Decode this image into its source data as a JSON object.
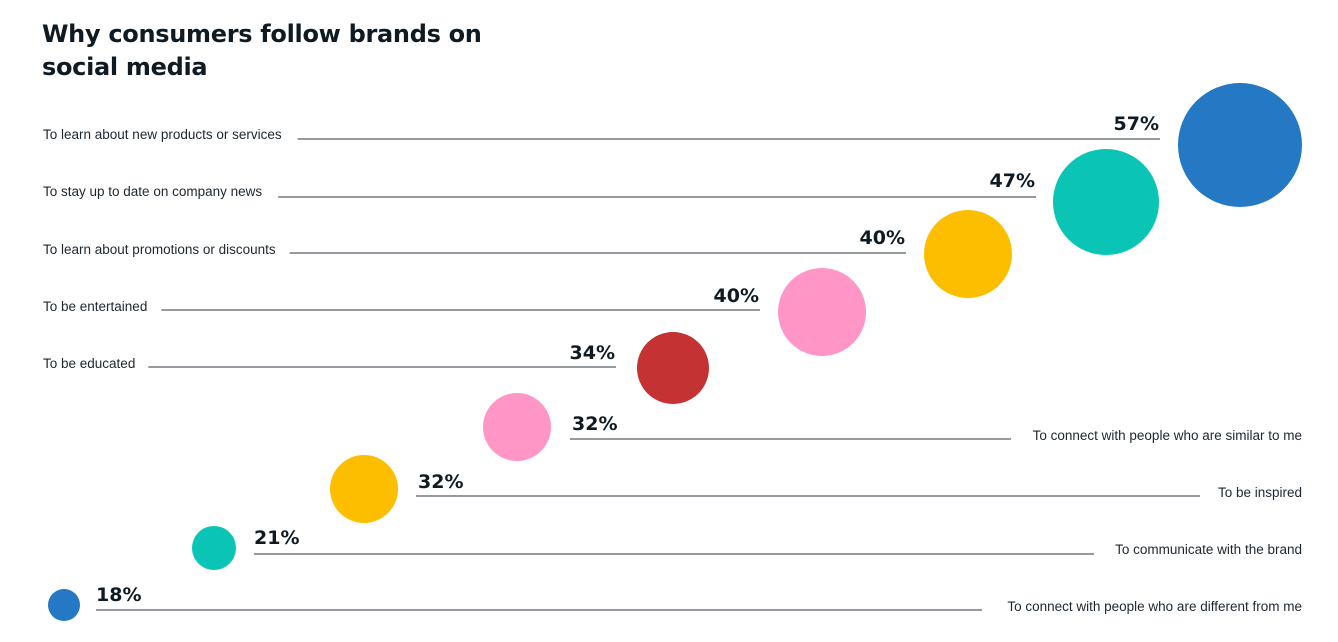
{
  "title": "Why consumers follow brands on social media",
  "chart_data": {
    "type": "bubble",
    "title": "Why consumers follow brands on social media",
    "value_unit": "%",
    "series": [
      {
        "label": "To learn about new products or services",
        "value": 57,
        "value_label": "57%",
        "color": "#2478c4"
      },
      {
        "label": "To stay up to date on company news",
        "value": 47,
        "value_label": "47%",
        "color": "#0ac5b5"
      },
      {
        "label": "To learn about promotions or discounts",
        "value": 40,
        "value_label": "40%",
        "color": "#fdbe00"
      },
      {
        "label": "To be entertained",
        "value": 40,
        "value_label": "40%",
        "color": "#ff96c6"
      },
      {
        "label": "To be educated",
        "value": 34,
        "value_label": "34%",
        "color": "#c53233"
      },
      {
        "label": "To connect with people who are similar to me",
        "value": 32,
        "value_label": "32%",
        "color": "#ff96c6"
      },
      {
        "label": "To be inspired",
        "value": 32,
        "value_label": "32%",
        "color": "#fdbe00"
      },
      {
        "label": "To communicate with the brand",
        "value": 21,
        "value_label": "21%",
        "color": "#0ac5b5"
      },
      {
        "label": "To connect with people who are different from me",
        "value": 18,
        "value_label": "18%",
        "color": "#2478c4"
      }
    ]
  }
}
